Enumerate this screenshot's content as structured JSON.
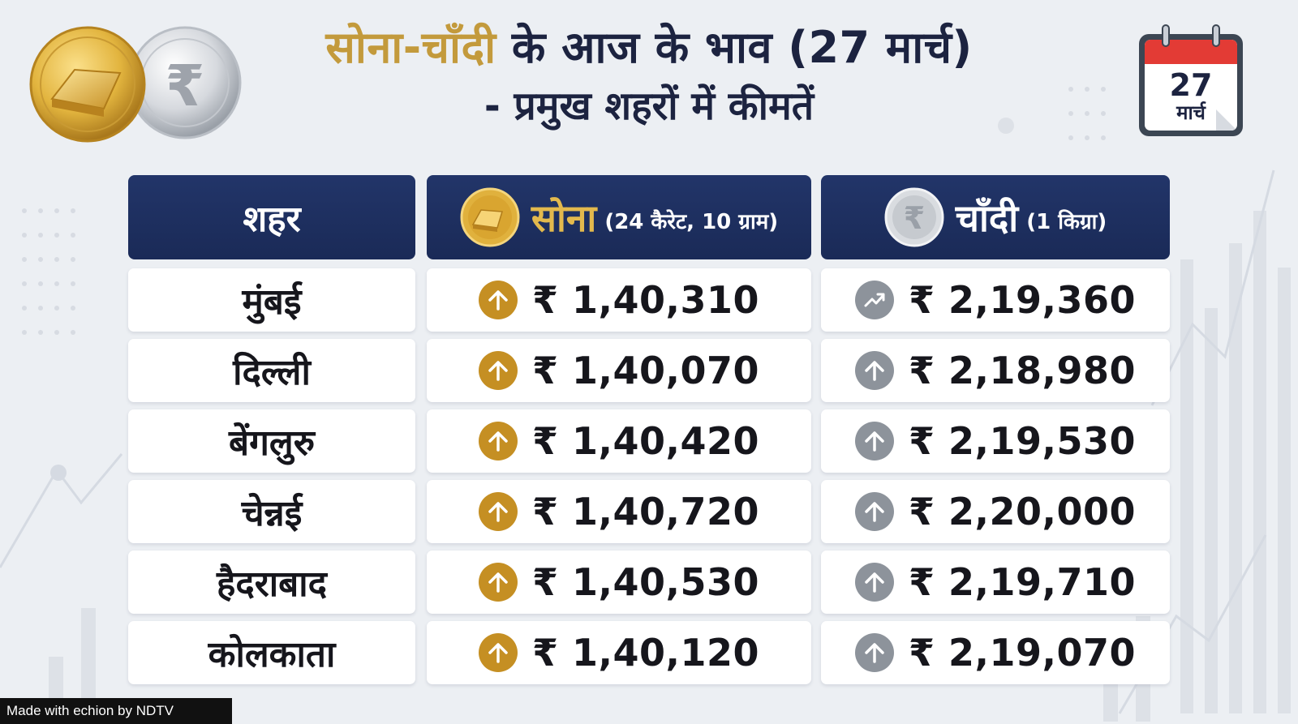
{
  "title": {
    "highlight": "सोना-चाँदी",
    "rest": " के आज के भाव (27 मार्च)",
    "line2": "- प्रमुख शहरों में कीमतें"
  },
  "calendar": {
    "day": "27",
    "month": "मार्च"
  },
  "table": {
    "headers": {
      "city": "शहर",
      "gold_main": "सोना",
      "gold_sub": "(24 कैरेट, 10 ग्राम)",
      "silver_main": "चाँदी",
      "silver_sub": "(1 किग्रा)"
    },
    "rows": [
      {
        "city": "मुंबई",
        "gold": "₹ 1,40,310",
        "silver": "₹ 2,19,360",
        "silver_icon": "trending-up-icon"
      },
      {
        "city": "दिल्ली",
        "gold": "₹ 1,40,070",
        "silver": "₹ 2,18,980",
        "silver_icon": "up-arrow-icon"
      },
      {
        "city": "बेंगलुरु",
        "gold": "₹ 1,40,420",
        "silver": "₹ 2,19,530",
        "silver_icon": "up-arrow-icon"
      },
      {
        "city": "चेन्नई",
        "gold": "₹ 1,40,720",
        "silver": "₹ 2,20,000",
        "silver_icon": "up-arrow-icon"
      },
      {
        "city": "हैदराबाद",
        "gold": "₹ 1,40,530",
        "silver": "₹ 2,19,710",
        "silver_icon": "up-arrow-icon"
      },
      {
        "city": "कोलकाता",
        "gold": "₹ 1,40,120",
        "silver": "₹ 2,19,070",
        "silver_icon": "up-arrow-icon"
      }
    ]
  },
  "watermark": "Made with echion by NDTV",
  "colors": {
    "gold": "#c39a3c",
    "navy": "#1c2340",
    "header_bg": "#1f3161",
    "gold_arrow": "#c58f23",
    "silver_arrow": "#8d939b"
  }
}
